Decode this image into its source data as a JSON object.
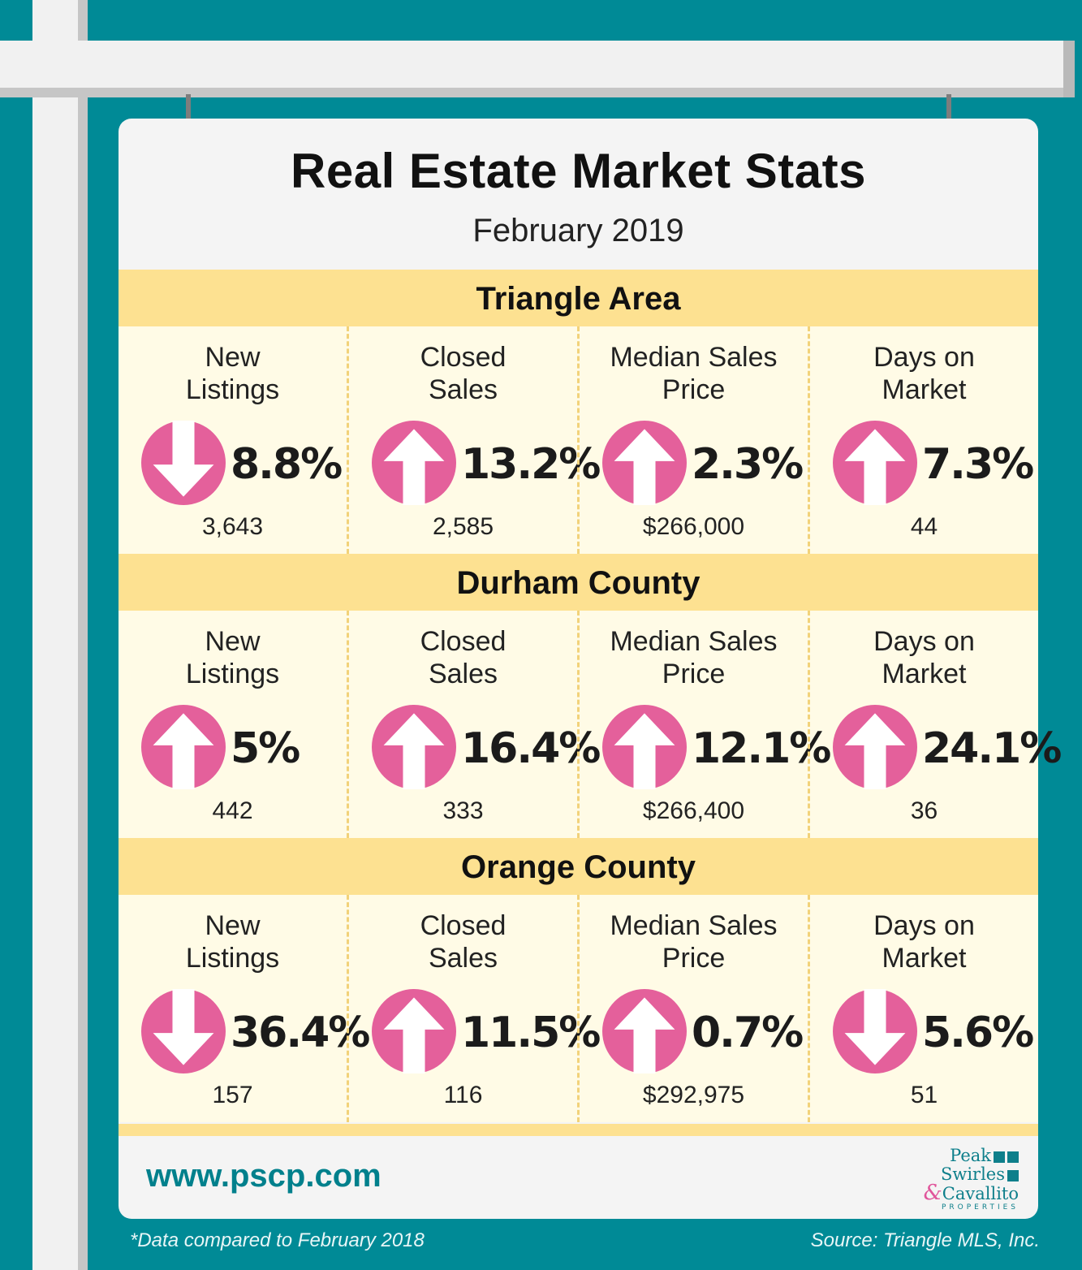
{
  "title": "Real Estate Market Stats",
  "subtitle": "February 2019",
  "arrow_color": "#e4609b",
  "regions": [
    {
      "name": "Triangle Area",
      "stats": [
        {
          "label": "New\nListings",
          "direction": "down",
          "pct": "8.8%",
          "count": "3,643"
        },
        {
          "label": "Closed\nSales",
          "direction": "up",
          "pct": "13.2%",
          "count": "2,585"
        },
        {
          "label": "Median Sales\nPrice",
          "direction": "up",
          "pct": "2.3%",
          "count": "$266,000"
        },
        {
          "label": "Days on\nMarket",
          "direction": "up",
          "pct": "7.3%",
          "count": "44"
        }
      ]
    },
    {
      "name": "Durham County",
      "stats": [
        {
          "label": "New\nListings",
          "direction": "up",
          "pct": "5%",
          "count": "442"
        },
        {
          "label": "Closed\nSales",
          "direction": "up",
          "pct": "16.4%",
          "count": "333"
        },
        {
          "label": "Median Sales\nPrice",
          "direction": "up",
          "pct": "12.1%",
          "count": "$266,400"
        },
        {
          "label": "Days on\nMarket",
          "direction": "up",
          "pct": "24.1%",
          "count": "36"
        }
      ]
    },
    {
      "name": "Orange County",
      "stats": [
        {
          "label": "New\nListings",
          "direction": "down",
          "pct": "36.4%",
          "count": "157"
        },
        {
          "label": "Closed\nSales",
          "direction": "up",
          "pct": "11.5%",
          "count": "116"
        },
        {
          "label": "Median Sales\nPrice",
          "direction": "up",
          "pct": "0.7%",
          "count": "$292,975"
        },
        {
          "label": "Days on\nMarket",
          "direction": "down",
          "pct": "5.6%",
          "count": "51"
        }
      ]
    }
  ],
  "website": "www.pscp.com",
  "logo": {
    "line1": "Peak",
    "line2": "Swirles",
    "amp": "&",
    "line3": "Cavallito",
    "line4": "PROPERTIES"
  },
  "footnote": "*Data compared to February 2018",
  "source": "Source: Triangle MLS, Inc."
}
